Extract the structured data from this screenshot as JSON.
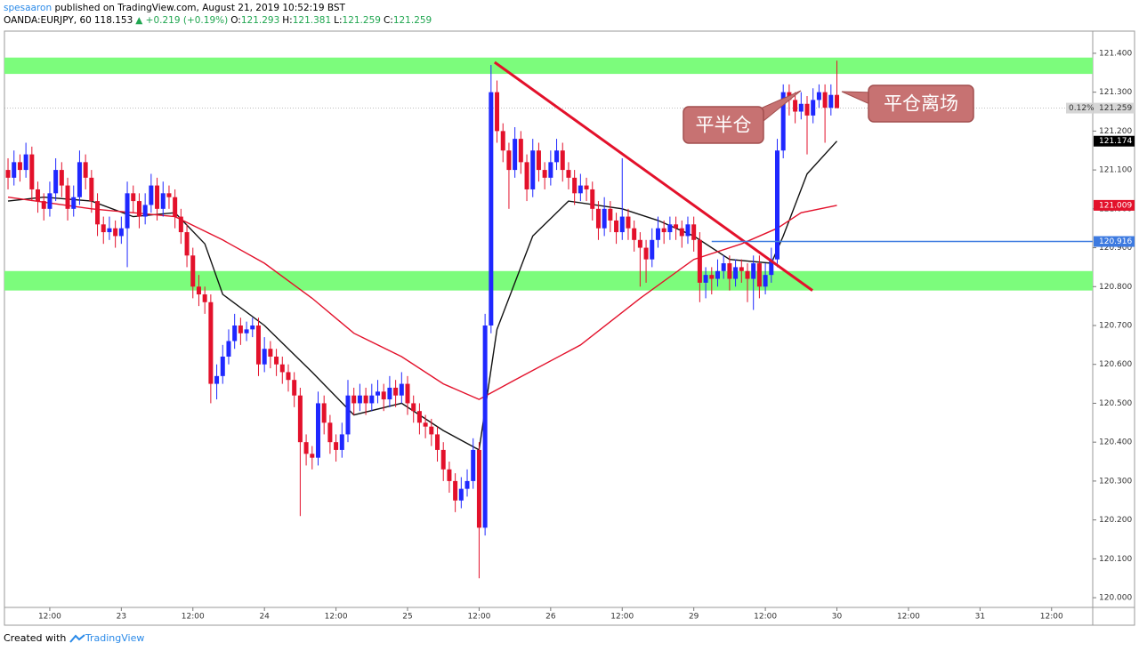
{
  "header": {
    "author": "spesaaron",
    "published": "published on TradingView.com, August 21, 2019 10:52:19 BST",
    "quote": [
      {
        "text": "OANDA:EURJPY, 60",
        "color": "#000000"
      },
      {
        "text": "118.153",
        "color": "#000000"
      },
      {
        "text": "▲ +0.219 (+0.19%)",
        "color": "#21a651"
      },
      {
        "text": "O:",
        "color": "#000000"
      },
      {
        "text": "121.293",
        "color": "#21a651"
      },
      {
        "text": "H:",
        "color": "#000000"
      },
      {
        "text": "121.381",
        "color": "#21a651"
      },
      {
        "text": "L:",
        "color": "#000000"
      },
      {
        "text": "121.259",
        "color": "#21a651"
      },
      {
        "text": "C:",
        "color": "#000000"
      },
      {
        "text": "121.259",
        "color": "#21a651"
      }
    ]
  },
  "footer": {
    "created": "Created with",
    "brand": "TradingView"
  },
  "chart_data": {
    "type": "candlestick",
    "up_color": "#1f28ff",
    "down_color": "#e3112b",
    "xlim": [
      -0.6,
      181.9
    ],
    "ylim": [
      119.975,
      121.457
    ],
    "xticks": [
      {
        "value": 7,
        "label": "12:00"
      },
      {
        "value": 19,
        "label": "23"
      },
      {
        "value": 31,
        "label": "12:00"
      },
      {
        "value": 43,
        "label": "24"
      },
      {
        "value": 55,
        "label": "12:00"
      },
      {
        "value": 67,
        "label": "25"
      },
      {
        "value": 79,
        "label": "12:00"
      },
      {
        "value": 91,
        "label": "26"
      },
      {
        "value": 103,
        "label": "12:00"
      },
      {
        "value": 115,
        "label": "29"
      },
      {
        "value": 127,
        "label": "12:00"
      },
      {
        "value": 139,
        "label": "30"
      },
      {
        "value": 151,
        "label": "12:00"
      },
      {
        "value": 163,
        "label": "31"
      },
      {
        "value": 175,
        "label": "12:00"
      }
    ],
    "yticks": [
      {
        "value": 121.4,
        "label": "121.400"
      },
      {
        "value": 121.3,
        "label": "121.300"
      },
      {
        "value": 121.2,
        "label": "121.200"
      },
      {
        "value": 121.1,
        "label": "121.100"
      },
      {
        "value": 121.0,
        "label": "121.000"
      },
      {
        "value": 120.9,
        "label": "120.900"
      },
      {
        "value": 120.8,
        "label": "120.800"
      },
      {
        "value": 120.7,
        "label": "120.700"
      },
      {
        "value": 120.6,
        "label": "120.600"
      },
      {
        "value": 120.5,
        "label": "120.500"
      },
      {
        "value": 120.4,
        "label": "120.400"
      },
      {
        "value": 120.3,
        "label": "120.300"
      },
      {
        "value": 120.2,
        "label": "120.200"
      },
      {
        "value": 120.1,
        "label": "120.100"
      },
      {
        "value": 120.0,
        "label": "120.000"
      }
    ],
    "zones": [
      {
        "from": 121.347,
        "to": 121.389,
        "color": "#7cfc7c"
      },
      {
        "from": 120.79,
        "to": 120.84,
        "color": "#7cfc7c"
      }
    ],
    "candles": [
      [
        121.1,
        121.13,
        121.05,
        121.08
      ],
      [
        121.08,
        121.15,
        121.06,
        121.12
      ],
      [
        121.12,
        121.14,
        121.07,
        121.1
      ],
      [
        121.1,
        121.17,
        121.08,
        121.14
      ],
      [
        121.14,
        121.16,
        121.02,
        121.05
      ],
      [
        121.05,
        121.07,
        120.99,
        121.02
      ],
      [
        121.02,
        121.04,
        120.97,
        121.0
      ],
      [
        121.0,
        121.07,
        120.98,
        121.04
      ],
      [
        121.04,
        121.13,
        121.02,
        121.1
      ],
      [
        121.1,
        121.12,
        121.03,
        121.06
      ],
      [
        121.06,
        121.08,
        120.97,
        121.0
      ],
      [
        121.0,
        121.06,
        120.98,
        121.03
      ],
      [
        121.03,
        121.15,
        121.01,
        121.12
      ],
      [
        121.12,
        121.14,
        121.05,
        121.08
      ],
      [
        121.08,
        121.1,
        120.99,
        121.02
      ],
      [
        121.02,
        121.04,
        120.93,
        120.96
      ],
      [
        120.96,
        120.98,
        120.91,
        120.94
      ],
      [
        120.94,
        120.98,
        120.92,
        120.95
      ],
      [
        120.95,
        120.97,
        120.9,
        120.93
      ],
      [
        120.93,
        120.98,
        120.91,
        120.95
      ],
      [
        120.95,
        121.07,
        120.85,
        121.04
      ],
      [
        121.04,
        121.06,
        120.99,
        121.02
      ],
      [
        121.02,
        121.04,
        120.95,
        120.98
      ],
      [
        120.98,
        121.04,
        120.96,
        121.01
      ],
      [
        121.01,
        121.09,
        120.99,
        121.06
      ],
      [
        121.06,
        121.08,
        120.97,
        121.0
      ],
      [
        121.0,
        121.07,
        120.98,
        121.04
      ],
      [
        121.04,
        121.06,
        121.0,
        121.03
      ],
      [
        121.03,
        121.05,
        120.95,
        120.98
      ],
      [
        120.98,
        121.0,
        120.91,
        120.94
      ],
      [
        120.94,
        120.96,
        120.85,
        120.88
      ],
      [
        120.88,
        120.9,
        120.77,
        120.8
      ],
      [
        120.8,
        120.83,
        120.75,
        120.78
      ],
      [
        120.78,
        120.8,
        120.73,
        120.76
      ],
      [
        120.76,
        120.78,
        120.5,
        120.55
      ],
      [
        120.55,
        120.6,
        120.51,
        120.57
      ],
      [
        120.57,
        120.65,
        120.55,
        120.62
      ],
      [
        120.62,
        120.69,
        120.6,
        120.66
      ],
      [
        120.66,
        120.73,
        120.64,
        120.7
      ],
      [
        120.7,
        120.72,
        120.65,
        120.68
      ],
      [
        120.68,
        120.71,
        120.66,
        120.69
      ],
      [
        120.69,
        120.72,
        120.67,
        120.7
      ],
      [
        120.7,
        120.72,
        120.57,
        120.6
      ],
      [
        120.6,
        120.67,
        120.58,
        120.64
      ],
      [
        120.64,
        120.66,
        120.59,
        120.62
      ],
      [
        120.62,
        120.64,
        120.57,
        120.6
      ],
      [
        120.6,
        120.62,
        120.55,
        120.58
      ],
      [
        120.58,
        120.6,
        120.53,
        120.56
      ],
      [
        120.56,
        120.58,
        120.49,
        120.52
      ],
      [
        120.52,
        120.54,
        120.21,
        120.4
      ],
      [
        120.4,
        120.42,
        120.34,
        120.37
      ],
      [
        120.37,
        120.39,
        120.33,
        120.36
      ],
      [
        120.36,
        120.53,
        120.34,
        120.5
      ],
      [
        120.5,
        120.52,
        120.42,
        120.45
      ],
      [
        120.45,
        120.47,
        120.37,
        120.4
      ],
      [
        120.4,
        120.42,
        120.35,
        120.38
      ],
      [
        120.38,
        120.45,
        120.36,
        120.42
      ],
      [
        120.42,
        120.56,
        120.4,
        120.52
      ],
      [
        120.52,
        120.54,
        120.47,
        120.5
      ],
      [
        120.5,
        120.55,
        120.48,
        120.52
      ],
      [
        120.52,
        120.54,
        120.47,
        120.5
      ],
      [
        120.5,
        120.55,
        120.48,
        120.52
      ],
      [
        120.52,
        120.56,
        120.5,
        120.53
      ],
      [
        120.53,
        120.55,
        120.48,
        120.51
      ],
      [
        120.51,
        120.57,
        120.49,
        120.54
      ],
      [
        120.54,
        120.56,
        120.49,
        120.52
      ],
      [
        120.52,
        120.58,
        120.5,
        120.55
      ],
      [
        120.55,
        120.57,
        120.47,
        120.5
      ],
      [
        120.5,
        120.52,
        120.45,
        120.48
      ],
      [
        120.48,
        120.5,
        120.42,
        120.45
      ],
      [
        120.45,
        120.47,
        120.41,
        120.44
      ],
      [
        120.44,
        120.46,
        120.39,
        120.42
      ],
      [
        120.42,
        120.44,
        120.35,
        120.38
      ],
      [
        120.38,
        120.4,
        120.3,
        120.33
      ],
      [
        120.33,
        120.35,
        120.27,
        120.3
      ],
      [
        120.3,
        120.32,
        120.22,
        120.25
      ],
      [
        120.25,
        120.31,
        120.23,
        120.28
      ],
      [
        120.28,
        120.33,
        120.26,
        120.3
      ],
      [
        120.3,
        120.41,
        120.28,
        120.38
      ],
      [
        120.38,
        120.4,
        120.05,
        120.18
      ],
      [
        120.18,
        120.73,
        120.16,
        120.7
      ],
      [
        120.7,
        121.37,
        120.68,
        121.3
      ],
      [
        121.3,
        121.33,
        121.17,
        121.2
      ],
      [
        121.2,
        121.22,
        121.12,
        121.15
      ],
      [
        121.15,
        121.17,
        121.0,
        121.1
      ],
      [
        121.1,
        121.21,
        121.08,
        121.18
      ],
      [
        121.18,
        121.2,
        121.09,
        121.12
      ],
      [
        121.12,
        121.14,
        121.02,
        121.05
      ],
      [
        121.05,
        121.18,
        121.03,
        121.15
      ],
      [
        121.15,
        121.17,
        121.07,
        121.1
      ],
      [
        121.1,
        121.12,
        121.05,
        121.08
      ],
      [
        121.08,
        121.15,
        121.06,
        121.12
      ],
      [
        121.12,
        121.18,
        121.1,
        121.15
      ],
      [
        121.15,
        121.17,
        121.07,
        121.1
      ],
      [
        121.1,
        121.12,
        121.05,
        121.08
      ],
      [
        121.08,
        121.1,
        121.01,
        121.04
      ],
      [
        121.04,
        121.09,
        121.02,
        121.06
      ],
      [
        121.06,
        121.08,
        121.02,
        121.05
      ],
      [
        121.05,
        121.07,
        120.97,
        121.0
      ],
      [
        121.0,
        121.02,
        120.92,
        120.95
      ],
      [
        120.95,
        121.03,
        120.93,
        121.0
      ],
      [
        121.0,
        121.02,
        120.94,
        120.97
      ],
      [
        120.97,
        120.99,
        120.91,
        120.94
      ],
      [
        120.94,
        121.13,
        120.92,
        120.98
      ],
      [
        120.98,
        121.0,
        120.92,
        120.95
      ],
      [
        120.95,
        120.97,
        120.89,
        120.92
      ],
      [
        120.92,
        120.94,
        120.8,
        120.9
      ],
      [
        120.9,
        120.92,
        120.81,
        120.87
      ],
      [
        120.87,
        120.95,
        120.85,
        120.92
      ],
      [
        120.92,
        120.98,
        120.9,
        120.95
      ],
      [
        120.95,
        120.97,
        120.91,
        120.94
      ],
      [
        120.94,
        120.98,
        120.92,
        120.96
      ],
      [
        120.96,
        120.98,
        120.92,
        120.95
      ],
      [
        120.95,
        120.97,
        120.9,
        120.93
      ],
      [
        120.93,
        120.98,
        120.91,
        120.96
      ],
      [
        120.96,
        120.98,
        120.89,
        120.92
      ],
      [
        120.92,
        120.94,
        120.76,
        120.81
      ],
      [
        120.81,
        120.85,
        120.77,
        120.83
      ],
      [
        120.83,
        120.85,
        120.78,
        120.82
      ],
      [
        120.82,
        120.87,
        120.8,
        120.84
      ],
      [
        120.84,
        120.88,
        120.82,
        120.86
      ],
      [
        120.86,
        120.88,
        120.79,
        120.82
      ],
      [
        120.82,
        120.87,
        120.8,
        120.85
      ],
      [
        120.85,
        120.87,
        120.81,
        120.84
      ],
      [
        120.84,
        120.86,
        120.76,
        120.82
      ],
      [
        120.82,
        120.88,
        120.74,
        120.86
      ],
      [
        120.86,
        120.88,
        120.77,
        120.8
      ],
      [
        120.8,
        120.86,
        120.78,
        120.83
      ],
      [
        120.83,
        120.9,
        120.81,
        120.87
      ],
      [
        120.87,
        121.18,
        120.85,
        121.15
      ],
      [
        121.15,
        121.32,
        121.13,
        121.3
      ],
      [
        121.3,
        121.32,
        121.24,
        121.28
      ],
      [
        121.28,
        121.3,
        121.22,
        121.25
      ],
      [
        121.25,
        121.3,
        121.23,
        121.27
      ],
      [
        121.27,
        121.29,
        121.14,
        121.24
      ],
      [
        121.24,
        121.31,
        121.22,
        121.28
      ],
      [
        121.28,
        121.32,
        121.26,
        121.3
      ],
      [
        121.3,
        121.32,
        121.17,
        121.26
      ],
      [
        121.26,
        121.32,
        121.24,
        121.293
      ],
      [
        121.293,
        121.381,
        121.259,
        121.259
      ]
    ],
    "series": [
      {
        "color": "#111111",
        "x": [
          0,
          6,
          14,
          21,
          28,
          33,
          36,
          43,
          51,
          58,
          66,
          73,
          79,
          82,
          88,
          94,
          103,
          109,
          115,
          121,
          128,
          130,
          134,
          139
        ],
        "values": [
          121.02,
          121.03,
          121.02,
          120.98,
          120.99,
          120.91,
          120.78,
          120.7,
          120.58,
          120.47,
          120.5,
          120.43,
          120.38,
          120.69,
          120.93,
          121.02,
          121.0,
          120.97,
          120.93,
          120.87,
          120.86,
          120.93,
          121.09,
          121.174
        ]
      },
      {
        "color": "#e3112b",
        "x": [
          0,
          14,
          28,
          36,
          43,
          51,
          58,
          66,
          73,
          79,
          85,
          96,
          106,
          115,
          123,
          129,
          133,
          139
        ],
        "values": [
          121.03,
          121.0,
          120.98,
          120.92,
          120.86,
          120.77,
          120.68,
          120.62,
          120.55,
          120.51,
          120.56,
          120.65,
          120.77,
          120.87,
          120.91,
          120.95,
          120.99,
          121.009
        ]
      }
    ],
    "trendline": {
      "x": [
        81.6,
        134.9
      ],
      "values": [
        121.377,
        120.79
      ],
      "color": "#e3112b"
    },
    "hline": {
      "value": 120.916,
      "x_start": 118,
      "color": "#3d7ae0"
    },
    "price_tags": [
      {
        "value": 121.259,
        "prefix": "0.12%",
        "color": "#d6d6d6",
        "text_color": "#333333",
        "dotted": true
      },
      {
        "value": 121.174,
        "color": "#000000",
        "text_color": "#ffffff"
      },
      {
        "value": 121.009,
        "color": "#e3112b",
        "text_color": "#ffffff"
      },
      {
        "value": 120.916,
        "color": "#3d7ae0",
        "text_color": "#ffffff"
      }
    ],
    "annotations": [
      {
        "text": "平半仓"
      },
      {
        "text": "平仓离场"
      }
    ]
  }
}
